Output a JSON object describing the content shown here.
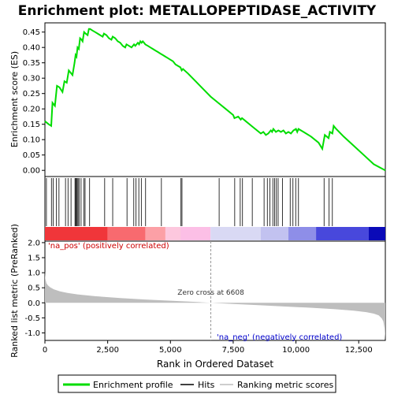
{
  "chart_data": {
    "type": "line",
    "title": "Enrichment plot: METALLOPEPTIDASE_ACTIVITY",
    "top_panel": {
      "ylabel": "Enrichment score (ES)",
      "ylim": [
        -0.02,
        0.48
      ],
      "yticks": [
        "0.00",
        "0.05",
        "0.10",
        "0.15",
        "0.20",
        "0.25",
        "0.30",
        "0.35",
        "0.40",
        "0.45"
      ],
      "ytick_values": [
        0,
        0.05,
        0.1,
        0.15,
        0.2,
        0.25,
        0.3,
        0.35,
        0.4,
        0.45
      ],
      "line_color": "#00dd00",
      "series": [
        {
          "x": [
            0,
            80,
            150,
            250,
            300,
            400,
            480,
            580,
            700,
            780,
            870,
            950,
            1000,
            1100,
            1180,
            1220,
            1260,
            1300,
            1350,
            1400,
            1460,
            1500,
            1560,
            1620,
            1700,
            1750,
            1800,
            1900,
            2000,
            2100,
            2200,
            2300,
            2350,
            2450,
            2550,
            2650,
            2700,
            2800,
            2900,
            3000,
            3100,
            3200,
            3250,
            3350,
            3450,
            3550,
            3600,
            3700,
            3750,
            3800,
            3850,
            3900,
            3950,
            4000,
            4100,
            4200,
            4300,
            4400,
            4500,
            4600,
            4700,
            4800,
            4900,
            5000,
            5100,
            5200,
            5300,
            5400,
            5450,
            5500,
            5700,
            6000,
            6300,
            6600,
            6900,
            7200,
            7500,
            7550,
            7700,
            7800,
            7850,
            8000,
            8300,
            8600,
            8700,
            8800,
            8900,
            8950,
            9000,
            9050,
            9100,
            9200,
            9300,
            9400,
            9500,
            9600,
            9700,
            9800,
            9900,
            10000,
            10050,
            10100,
            10300,
            10600,
            10900,
            11050,
            11150,
            11300,
            11350,
            11450,
            11500,
            11600,
            11900,
            12300,
            12700,
            13100,
            13560
          ],
          "y": [
            0.16,
            0.155,
            0.15,
            0.145,
            0.22,
            0.21,
            0.275,
            0.27,
            0.255,
            0.29,
            0.285,
            0.325,
            0.32,
            0.31,
            0.35,
            0.375,
            0.37,
            0.4,
            0.395,
            0.43,
            0.425,
            0.42,
            0.45,
            0.445,
            0.44,
            0.46,
            0.46,
            0.455,
            0.45,
            0.445,
            0.44,
            0.435,
            0.445,
            0.44,
            0.43,
            0.425,
            0.435,
            0.43,
            0.42,
            0.415,
            0.405,
            0.4,
            0.41,
            0.405,
            0.4,
            0.41,
            0.405,
            0.415,
            0.41,
            0.42,
            0.415,
            0.42,
            0.415,
            0.41,
            0.405,
            0.4,
            0.395,
            0.39,
            0.385,
            0.38,
            0.375,
            0.37,
            0.365,
            0.36,
            0.355,
            0.345,
            0.34,
            0.335,
            0.325,
            0.33,
            0.315,
            0.29,
            0.265,
            0.24,
            0.22,
            0.2,
            0.18,
            0.17,
            0.175,
            0.165,
            0.17,
            0.16,
            0.14,
            0.12,
            0.125,
            0.115,
            0.12,
            0.125,
            0.13,
            0.125,
            0.135,
            0.125,
            0.13,
            0.125,
            0.13,
            0.12,
            0.125,
            0.12,
            0.13,
            0.135,
            0.125,
            0.135,
            0.125,
            0.11,
            0.09,
            0.07,
            0.115,
            0.105,
            0.125,
            0.12,
            0.145,
            0.135,
            0.11,
            0.08,
            0.05,
            0.02,
            0.0
          ]
        }
      ]
    },
    "hits": [
      60,
      260,
      330,
      460,
      560,
      820,
      920,
      1040,
      1200,
      1220,
      1260,
      1280,
      1320,
      1360,
      1440,
      1550,
      1600,
      1780,
      2380,
      2700,
      3270,
      3540,
      3630,
      3740,
      3840,
      4010,
      4640,
      5420,
      5460,
      6940,
      7560,
      7780,
      7870,
      8260,
      8730,
      8860,
      8960,
      9080,
      9150,
      9220,
      9290,
      9460,
      9770,
      9880,
      9990,
      10100,
      11120,
      11320,
      11450
    ],
    "bottom_panel": {
      "ylabel": "Ranked list metric (PreRanked)",
      "xlabel": "Rank in Ordered Dataset",
      "ylim": [
        -1.25,
        2.05
      ],
      "yticks": [
        "2.0",
        "1.5",
        "1.0",
        "0.5",
        "0.0",
        "-0.5",
        "-1.0"
      ],
      "ytick_values": [
        2.0,
        1.5,
        1.0,
        0.5,
        0.0,
        -0.5,
        -1.0
      ],
      "xticks": [
        "0",
        "2,500",
        "5,000",
        "7,500",
        "10,000",
        "12,500"
      ],
      "xtick_values": [
        0,
        2500,
        5000,
        7500,
        10000,
        12500
      ],
      "fill_color": "#bebebe",
      "metric_x": [
        0,
        20,
        60,
        120,
        200,
        350,
        600,
        900,
        1300,
        2000,
        3000,
        4000,
        5000,
        6000,
        6608,
        7500,
        8500,
        9500,
        10500,
        11500,
        12300,
        12800,
        13100,
        13300,
        13420,
        13480,
        13530,
        13560
      ],
      "metric_y": [
        1.05,
        0.8,
        0.65,
        0.58,
        0.52,
        0.45,
        0.38,
        0.33,
        0.28,
        0.22,
        0.16,
        0.11,
        0.07,
        0.03,
        0.0,
        -0.04,
        -0.08,
        -0.12,
        -0.16,
        -0.21,
        -0.26,
        -0.31,
        -0.36,
        -0.42,
        -0.52,
        -0.62,
        -0.85,
        -1.22
      ],
      "zero_cross_label": "Zero cross at 6608",
      "zero_cross": 6608,
      "pos_label": "'na_pos' (positively correlated)",
      "neg_label": "'na_neg' (negatively correlated)"
    },
    "color_bar": {
      "segments": [
        {
          "from": 0,
          "to": 2500,
          "color": "#f0363a"
        },
        {
          "from": 2500,
          "to": 4000,
          "color": "#f86a6f"
        },
        {
          "from": 4000,
          "to": 4800,
          "color": "#fca0a6"
        },
        {
          "from": 4800,
          "to": 5400,
          "color": "#fdc8de"
        },
        {
          "from": 5400,
          "to": 6600,
          "color": "#fcbfe6"
        },
        {
          "from": 6600,
          "to": 8600,
          "color": "#d9d9f4"
        },
        {
          "from": 8600,
          "to": 9700,
          "color": "#c2c2f0"
        },
        {
          "from": 9700,
          "to": 10800,
          "color": "#8e8ee8"
        },
        {
          "from": 10800,
          "to": 12900,
          "color": "#4848dc"
        },
        {
          "from": 12900,
          "to": 13560,
          "color": "#0a0ab8"
        }
      ]
    },
    "x_max": 13560,
    "legend": {
      "placement": "bottom",
      "entries": [
        {
          "label": "Enrichment profile",
          "color": "#00dd00"
        },
        {
          "label": "Hits",
          "color": "#000000"
        },
        {
          "label": "Ranking metric scores",
          "color": "#bebebe"
        }
      ]
    }
  }
}
